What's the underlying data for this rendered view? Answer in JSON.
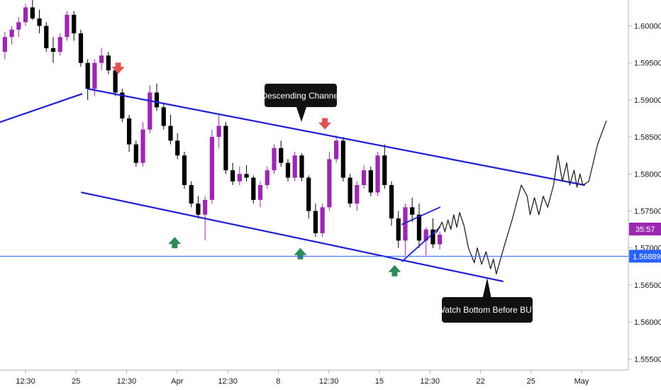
{
  "chart_data": {
    "type": "candlestick",
    "symbol_note": "",
    "y_axis": {
      "ticks": [
        "1.60000",
        "1.59500",
        "1.59000",
        "1.58500",
        "1.58000",
        "1.57500",
        "1.57000",
        "1.56500",
        "1.56000",
        "1.55500"
      ],
      "range": [
        1.5535,
        1.6035
      ]
    },
    "x_axis": {
      "ticks": [
        "12:30",
        "25",
        "12:30",
        "Apr",
        "12:30",
        "8",
        "12:30",
        "15",
        "12:30",
        "22",
        "25",
        "May"
      ],
      "range": [
        0,
        100
      ]
    },
    "price_badge": {
      "label": "1.56889",
      "value": 1.56889,
      "color": "#2962ff"
    },
    "countdown_badge": {
      "label": "35:57",
      "color": "#9c27b0"
    },
    "annotations": {
      "channel_label": "Descending Channel",
      "buy_label": "Watch Bottom Before BUY"
    },
    "colors": {
      "up_candle": "#9c27b0",
      "down_candle": "#000000",
      "channel": "#1e1ed6",
      "arrow_down": "#e05252",
      "arrow_up": "#2e8b57",
      "projection": "#222222"
    },
    "candles": [
      [
        1.5965,
        1.5992,
        1.5955,
        1.5985
      ],
      [
        1.5985,
        1.6,
        1.5975,
        1.5995
      ],
      [
        1.5995,
        1.6012,
        1.5985,
        1.6005
      ],
      [
        1.6005,
        1.603,
        1.6,
        1.6025
      ],
      [
        1.6025,
        1.6035,
        1.6008,
        1.601
      ],
      [
        1.601,
        1.6022,
        1.599,
        1.6
      ],
      [
        1.6,
        1.6005,
        1.5965,
        1.597
      ],
      [
        1.597,
        1.5985,
        1.595,
        1.5965
      ],
      [
        1.5965,
        1.599,
        1.596,
        1.5985
      ],
      [
        1.5985,
        1.602,
        1.598,
        1.6015
      ],
      [
        1.6015,
        1.602,
        1.598,
        1.599
      ],
      [
        1.599,
        1.5995,
        1.5945,
        1.595
      ],
      [
        1.595,
        1.5955,
        1.59,
        1.5915
      ],
      [
        1.5915,
        1.5955,
        1.5905,
        1.595
      ],
      [
        1.595,
        1.597,
        1.594,
        1.596
      ],
      [
        1.596,
        1.5965,
        1.5935,
        1.594
      ],
      [
        1.594,
        1.5945,
        1.5905,
        1.591
      ],
      [
        1.591,
        1.5915,
        1.587,
        1.5875
      ],
      [
        1.5875,
        1.588,
        1.583,
        1.584
      ],
      [
        1.584,
        1.5845,
        1.581,
        1.5815
      ],
      [
        1.5815,
        1.587,
        1.581,
        1.586
      ],
      [
        1.586,
        1.592,
        1.5855,
        1.591
      ],
      [
        1.591,
        1.5922,
        1.5885,
        1.589
      ],
      [
        1.589,
        1.5895,
        1.586,
        1.5865
      ],
      [
        1.5865,
        1.588,
        1.584,
        1.5845
      ],
      [
        1.5845,
        1.5855,
        1.582,
        1.5825
      ],
      [
        1.5825,
        1.583,
        1.578,
        1.5785
      ],
      [
        1.5785,
        1.579,
        1.5755,
        1.576
      ],
      [
        1.576,
        1.577,
        1.574,
        1.5745
      ],
      [
        1.5745,
        1.577,
        1.571,
        1.5765
      ],
      [
        1.5765,
        1.586,
        1.576,
        1.585
      ],
      [
        1.585,
        1.588,
        1.5835,
        1.5865
      ],
      [
        1.5865,
        1.587,
        1.58,
        1.5805
      ],
      [
        1.5805,
        1.5815,
        1.5785,
        1.579
      ],
      [
        1.579,
        1.581,
        1.5785,
        1.58
      ],
      [
        1.58,
        1.5812,
        1.579,
        1.5795
      ],
      [
        1.5795,
        1.5798,
        1.576,
        1.5765
      ],
      [
        1.5765,
        1.579,
        1.5755,
        1.5785
      ],
      [
        1.5785,
        1.581,
        1.578,
        1.5805
      ],
      [
        1.5805,
        1.584,
        1.58,
        1.5835
      ],
      [
        1.5835,
        1.5845,
        1.581,
        1.5815
      ],
      [
        1.5815,
        1.582,
        1.579,
        1.5795
      ],
      [
        1.5795,
        1.583,
        1.579,
        1.5825
      ],
      [
        1.5825,
        1.5828,
        1.579,
        1.5795
      ],
      [
        1.5795,
        1.5798,
        1.574,
        1.575
      ],
      [
        1.575,
        1.576,
        1.5715,
        1.572
      ],
      [
        1.572,
        1.576,
        1.5715,
        1.5755
      ],
      [
        1.5755,
        1.583,
        1.575,
        1.582
      ],
      [
        1.582,
        1.5852,
        1.5815,
        1.5845
      ],
      [
        1.5845,
        1.585,
        1.579,
        1.5795
      ],
      [
        1.5795,
        1.58,
        1.5755,
        1.576
      ],
      [
        1.576,
        1.579,
        1.575,
        1.5785
      ],
      [
        1.5785,
        1.5812,
        1.578,
        1.5805
      ],
      [
        1.5805,
        1.581,
        1.577,
        1.5775
      ],
      [
        1.5775,
        1.583,
        1.577,
        1.5825
      ],
      [
        1.5825,
        1.584,
        1.578,
        1.5785
      ],
      [
        1.5785,
        1.579,
        1.573,
        1.574
      ],
      [
        1.574,
        1.575,
        1.57,
        1.571
      ],
      [
        1.571,
        1.576,
        1.569,
        1.5755
      ],
      [
        1.5755,
        1.5768,
        1.5735,
        1.5745
      ],
      [
        1.5745,
        1.576,
        1.57,
        1.571
      ],
      [
        1.571,
        1.5728,
        1.569,
        1.5725
      ],
      [
        1.5725,
        1.574,
        1.57,
        1.5705
      ],
      [
        1.5705,
        1.5722,
        1.5698,
        1.5718
      ]
    ],
    "projection": [
      [
        0,
        1.572
      ],
      [
        2,
        1.5735
      ],
      [
        3,
        1.5722
      ],
      [
        4,
        1.5738
      ],
      [
        5,
        1.5725
      ],
      [
        6,
        1.5745
      ],
      [
        7,
        1.5728
      ],
      [
        8,
        1.5748
      ],
      [
        9.5,
        1.573
      ],
      [
        11,
        1.57
      ],
      [
        13,
        1.568
      ],
      [
        14,
        1.57
      ],
      [
        15.5,
        1.5678
      ],
      [
        17,
        1.5695
      ],
      [
        18.5,
        1.5672
      ],
      [
        19.5,
        1.5685
      ],
      [
        20.5,
        1.5665
      ],
      [
        23,
        1.57
      ],
      [
        26,
        1.574
      ],
      [
        29,
        1.5785
      ],
      [
        31,
        1.577
      ],
      [
        32,
        1.5745
      ],
      [
        33.5,
        1.5768
      ],
      [
        35,
        1.5745
      ],
      [
        36.5,
        1.577
      ],
      [
        38,
        1.5755
      ],
      [
        40,
        1.5785
      ],
      [
        41.5,
        1.5825
      ],
      [
        43,
        1.579
      ],
      [
        44.5,
        1.5815
      ],
      [
        45.5,
        1.5785
      ],
      [
        47,
        1.5805
      ],
      [
        48,
        1.5782
      ],
      [
        49,
        1.58
      ],
      [
        50,
        1.5785
      ],
      [
        52,
        1.579
      ],
      [
        55,
        1.584
      ],
      [
        58,
        1.5872
      ]
    ],
    "projection_x_range": [
      615,
      855
    ],
    "channel_upper": [
      [
        1.5915,
        0.14
      ],
      [
        1.5785,
        0.93
      ]
    ],
    "channel_lower": [
      [
        1.5775,
        0.13
      ],
      [
        1.5655,
        0.8
      ]
    ],
    "early_line": [
      [
        1.587,
        0.0
      ],
      [
        1.5908,
        0.13
      ]
    ],
    "triangle_upper": [
      [
        1.5732,
        0.64
      ],
      [
        1.5755,
        0.7
      ]
    ],
    "triangle_lower": [
      [
        1.5682,
        0.64
      ],
      [
        1.5728,
        0.7
      ]
    ],
    "down_arrows": [
      [
        1.5937,
        0.188
      ],
      [
        1.5862,
        0.517
      ]
    ],
    "up_arrows": [
      [
        1.5715,
        0.278
      ],
      [
        1.57,
        0.478
      ],
      [
        1.5677,
        0.628
      ]
    ]
  }
}
